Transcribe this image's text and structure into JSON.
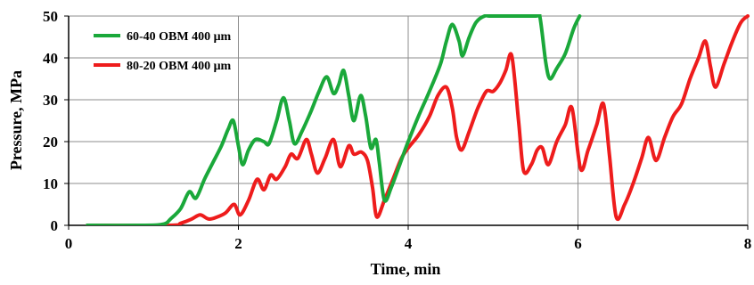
{
  "chart_data": {
    "type": "line",
    "title": "",
    "xlabel": "Time, min",
    "ylabel": "Pressure, MPa",
    "xlim": [
      0,
      8
    ],
    "ylim": [
      0,
      50
    ],
    "x_ticks": [
      "0",
      "2",
      "4",
      "6",
      "8"
    ],
    "y_ticks": [
      "0",
      "10",
      "20",
      "30",
      "40",
      "50"
    ],
    "grid": "vertical and horizontal lines at major ticks",
    "legend_position": "top-left",
    "series": [
      {
        "name": "60-40 OBM 400 μm",
        "color": "#1aa83a",
        "points": [
          [
            0.22,
            0
          ],
          [
            0.9,
            0
          ],
          [
            1.12,
            0.3
          ],
          [
            1.2,
            1.5
          ],
          [
            1.32,
            4
          ],
          [
            1.42,
            8
          ],
          [
            1.5,
            6.5
          ],
          [
            1.6,
            11
          ],
          [
            1.7,
            15
          ],
          [
            1.8,
            19
          ],
          [
            1.88,
            23
          ],
          [
            1.94,
            25
          ],
          [
            2.0,
            19
          ],
          [
            2.05,
            14.5
          ],
          [
            2.12,
            18
          ],
          [
            2.2,
            20.5
          ],
          [
            2.3,
            20
          ],
          [
            2.36,
            19.5
          ],
          [
            2.45,
            25
          ],
          [
            2.53,
            30.5
          ],
          [
            2.6,
            25
          ],
          [
            2.66,
            19.5
          ],
          [
            2.75,
            22.5
          ],
          [
            2.85,
            27
          ],
          [
            2.95,
            32
          ],
          [
            3.04,
            35.5
          ],
          [
            3.12,
            31.5
          ],
          [
            3.18,
            33.5
          ],
          [
            3.24,
            37
          ],
          [
            3.3,
            31
          ],
          [
            3.36,
            25
          ],
          [
            3.44,
            31
          ],
          [
            3.5,
            26
          ],
          [
            3.56,
            18.5
          ],
          [
            3.62,
            20.5
          ],
          [
            3.66,
            15
          ],
          [
            3.72,
            6
          ],
          [
            3.8,
            9
          ],
          [
            3.9,
            14.5
          ],
          [
            4.0,
            20
          ],
          [
            4.12,
            26
          ],
          [
            4.25,
            32
          ],
          [
            4.38,
            38.5
          ],
          [
            4.45,
            44
          ],
          [
            4.52,
            48
          ],
          [
            4.6,
            44
          ],
          [
            4.64,
            40.5
          ],
          [
            4.72,
            45
          ],
          [
            4.8,
            48.5
          ],
          [
            4.9,
            50
          ],
          [
            5.0,
            50
          ],
          [
            5.5,
            50
          ],
          [
            5.55,
            50
          ],
          [
            5.62,
            39
          ],
          [
            5.67,
            35
          ],
          [
            5.75,
            37.5
          ],
          [
            5.85,
            41
          ],
          [
            5.95,
            47
          ],
          [
            6.02,
            50
          ]
        ]
      },
      {
        "name": "80-20 OBM 400 μm",
        "color": "#ee1c1c",
        "points": [
          [
            0.22,
            0
          ],
          [
            1.2,
            0
          ],
          [
            1.32,
            0.5
          ],
          [
            1.45,
            1.5
          ],
          [
            1.55,
            2.5
          ],
          [
            1.65,
            1.5
          ],
          [
            1.75,
            2
          ],
          [
            1.85,
            3
          ],
          [
            1.95,
            5
          ],
          [
            2.02,
            2.5
          ],
          [
            2.12,
            6
          ],
          [
            2.22,
            11
          ],
          [
            2.3,
            8.5
          ],
          [
            2.38,
            12
          ],
          [
            2.45,
            11
          ],
          [
            2.55,
            14
          ],
          [
            2.62,
            17
          ],
          [
            2.7,
            16
          ],
          [
            2.8,
            20.5
          ],
          [
            2.86,
            17
          ],
          [
            2.93,
            12.5
          ],
          [
            3.02,
            16
          ],
          [
            3.12,
            20.5
          ],
          [
            3.2,
            14
          ],
          [
            3.3,
            19
          ],
          [
            3.36,
            17
          ],
          [
            3.45,
            17.5
          ],
          [
            3.52,
            15.5
          ],
          [
            3.58,
            9
          ],
          [
            3.63,
            2
          ],
          [
            3.72,
            6
          ],
          [
            3.82,
            11
          ],
          [
            3.92,
            16
          ],
          [
            4.0,
            18.5
          ],
          [
            4.12,
            21.5
          ],
          [
            4.25,
            26
          ],
          [
            4.35,
            31
          ],
          [
            4.45,
            33
          ],
          [
            4.52,
            28
          ],
          [
            4.57,
            21
          ],
          [
            4.63,
            18
          ],
          [
            4.72,
            22.5
          ],
          [
            4.82,
            28
          ],
          [
            4.92,
            32
          ],
          [
            5.0,
            32
          ],
          [
            5.08,
            34
          ],
          [
            5.15,
            37
          ],
          [
            5.22,
            40.5
          ],
          [
            5.3,
            25
          ],
          [
            5.36,
            13
          ],
          [
            5.45,
            14.5
          ],
          [
            5.52,
            18
          ],
          [
            5.58,
            18.5
          ],
          [
            5.65,
            14.5
          ],
          [
            5.75,
            20
          ],
          [
            5.85,
            24
          ],
          [
            5.93,
            28
          ],
          [
            6.03,
            13.5
          ],
          [
            6.12,
            18
          ],
          [
            6.22,
            24
          ],
          [
            6.3,
            29
          ],
          [
            6.37,
            17
          ],
          [
            6.45,
            2
          ],
          [
            6.55,
            5
          ],
          [
            6.65,
            10
          ],
          [
            6.75,
            16
          ],
          [
            6.83,
            21
          ],
          [
            6.92,
            15.5
          ],
          [
            7.02,
            21
          ],
          [
            7.12,
            26
          ],
          [
            7.22,
            29
          ],
          [
            7.32,
            35
          ],
          [
            7.42,
            40
          ],
          [
            7.5,
            44
          ],
          [
            7.56,
            38
          ],
          [
            7.62,
            33
          ],
          [
            7.72,
            38.5
          ],
          [
            7.82,
            44
          ],
          [
            7.92,
            48.5
          ],
          [
            8.0,
            50
          ]
        ]
      }
    ]
  }
}
